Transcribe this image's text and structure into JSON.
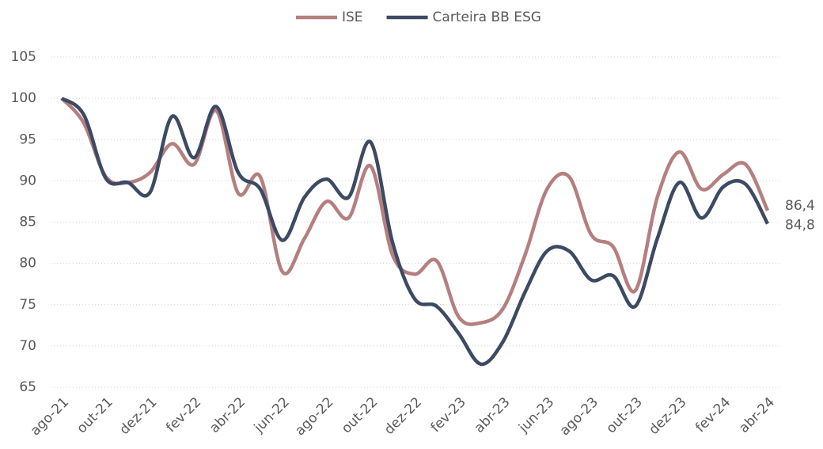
{
  "chart_data": {
    "type": "line",
    "categories": [
      "ago-21",
      null,
      "out-21",
      null,
      "dez-21",
      null,
      "fev-22",
      null,
      "abr-22",
      null,
      "jun-22",
      null,
      "ago-22",
      null,
      "out-22",
      null,
      "dez-22",
      null,
      "fev-23",
      null,
      "abr-23",
      null,
      "jun-23",
      null,
      "ago-23",
      null,
      "out-23",
      null,
      "dez-23",
      null,
      "fev-24",
      null,
      "abr-24"
    ],
    "series": [
      {
        "name": "ISE",
        "color": "#b57f7f",
        "values": [
          100,
          97,
          90.5,
          89.8,
          91,
          94.5,
          92,
          98.5,
          88.5,
          90.5,
          79,
          83,
          87.5,
          85.5,
          91.8,
          81,
          78.7,
          80.3,
          73.5,
          72.8,
          74.5,
          81,
          89,
          90.5,
          83.5,
          82,
          76.7,
          88,
          93.5,
          89,
          90.8,
          92,
          86.4
        ],
        "value_labels": [
          null,
          null,
          null,
          null,
          null,
          null,
          null,
          null,
          null,
          null,
          null,
          null,
          null,
          null,
          null,
          null,
          null,
          null,
          null,
          null,
          null,
          null,
          null,
          null,
          null,
          null,
          null,
          null,
          null,
          null,
          null,
          null,
          "86,4"
        ]
      },
      {
        "name": "Carteira BB ESG",
        "color": "#3d4a63",
        "values": [
          100,
          98,
          90.3,
          89.8,
          88.6,
          97.8,
          92.8,
          99,
          91,
          89,
          82.8,
          88,
          90.2,
          88,
          94.7,
          82.5,
          75.7,
          74.8,
          71.5,
          67.8,
          70.5,
          76.5,
          81.5,
          81.5,
          78,
          78.5,
          74.8,
          83,
          89.8,
          85.5,
          89.3,
          89.6,
          84.8
        ],
        "value_labels": [
          null,
          null,
          null,
          null,
          null,
          null,
          null,
          null,
          null,
          null,
          null,
          null,
          null,
          null,
          null,
          null,
          null,
          null,
          null,
          null,
          null,
          null,
          null,
          null,
          null,
          null,
          null,
          null,
          null,
          null,
          null,
          null,
          "84,8"
        ]
      }
    ],
    "ylim": [
      65,
      105
    ],
    "yticks": [
      65,
      70,
      75,
      80,
      85,
      90,
      95,
      100,
      105
    ],
    "grid": true,
    "legend": "top"
  }
}
